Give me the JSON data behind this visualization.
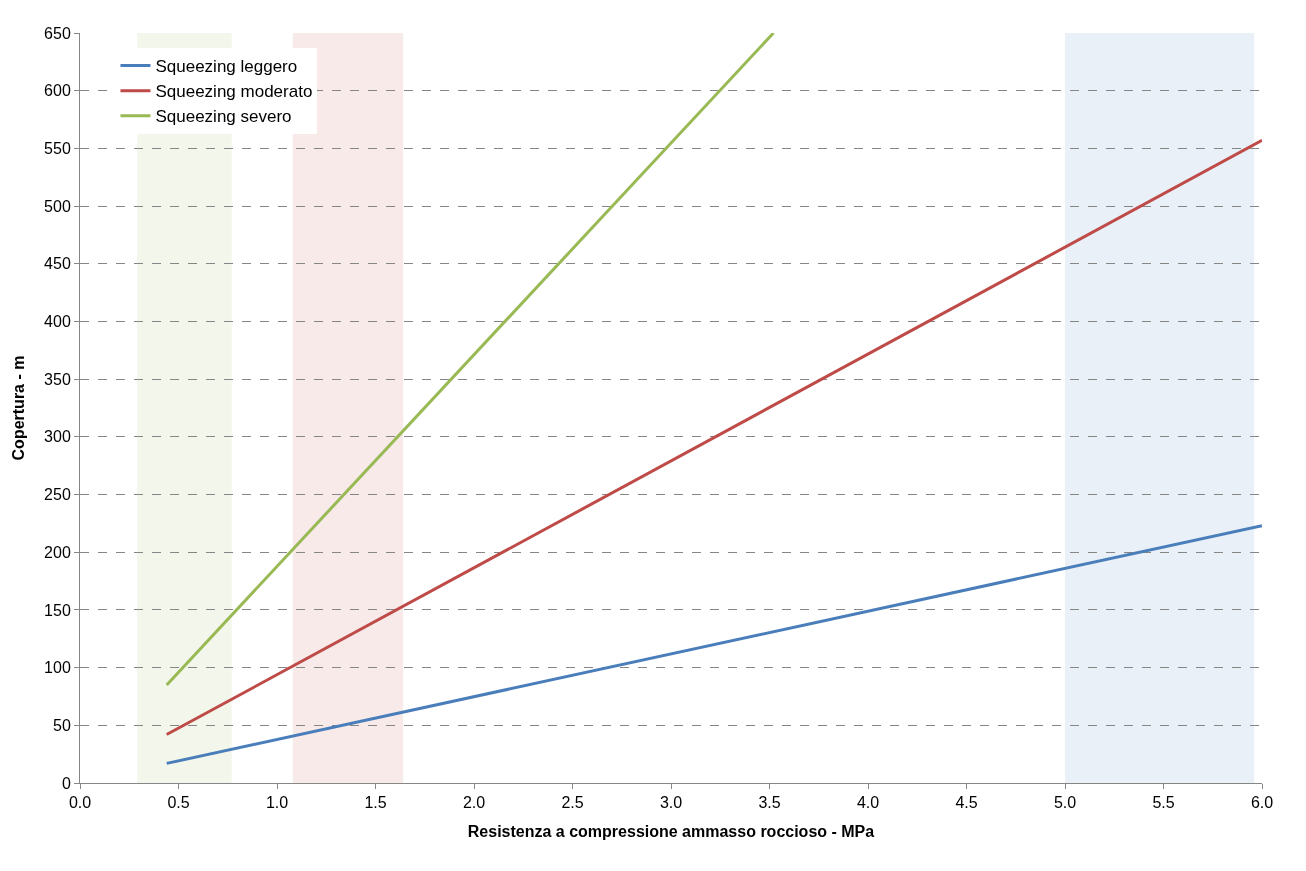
{
  "chart_data": {
    "type": "line",
    "xlabel": "Resistenza a compressione ammasso roccioso - MPa",
    "ylabel": "Copertura - m",
    "xlim": [
      0,
      6
    ],
    "ylim": [
      0,
      650
    ],
    "xticks": [
      {
        "value": 0,
        "label": "0.0"
      },
      {
        "value": 0.5,
        "label": "0.5"
      },
      {
        "value": 1,
        "label": "1.0"
      },
      {
        "value": 1.5,
        "label": "1.5"
      },
      {
        "value": 2,
        "label": "2.0"
      },
      {
        "value": 2.5,
        "label": "2.5"
      },
      {
        "value": 3,
        "label": "3.0"
      },
      {
        "value": 3.5,
        "label": "3.5"
      },
      {
        "value": 4,
        "label": "4.0"
      },
      {
        "value": 4.5,
        "label": "4.5"
      },
      {
        "value": 5,
        "label": "5.0"
      },
      {
        "value": 5.5,
        "label": "5.5"
      },
      {
        "value": 6,
        "label": "6.0"
      }
    ],
    "yticks": [
      0,
      50,
      100,
      150,
      200,
      250,
      300,
      350,
      400,
      450,
      500,
      550,
      600,
      650
    ],
    "series": [
      {
        "name": "Squeezing leggero",
        "color": "#4a7ebb",
        "x": [
          0.44,
          6
        ],
        "values": [
          17,
          223
        ]
      },
      {
        "name": "Squeezing moderato",
        "color": "#be4b48",
        "x": [
          0.44,
          6
        ],
        "values": [
          42,
          557
        ]
      },
      {
        "name": "Squeezing severo",
        "color": "#98b954",
        "x": [
          0.44,
          3.52
        ],
        "values": [
          85,
          650
        ]
      }
    ],
    "bands": [
      {
        "axis": "x",
        "from": 0.29,
        "to": 0.77,
        "color": "#ebf1de"
      },
      {
        "axis": "x",
        "from": 1.08,
        "to": 1.64,
        "color": "#f2dcdb"
      },
      {
        "axis": "x",
        "from": 5.0,
        "to": 5.96,
        "color": "#dce6f2"
      }
    ],
    "grid": "y",
    "legend": "top left",
    "marker": "none",
    "line_style": "solid"
  }
}
